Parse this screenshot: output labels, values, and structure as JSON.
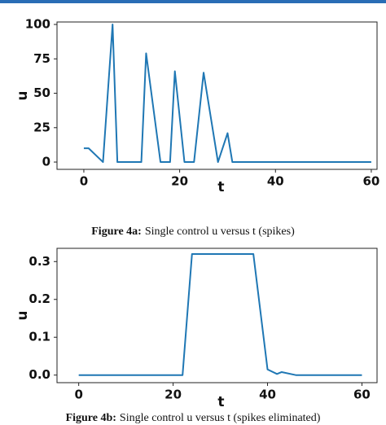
{
  "chart_data": [
    {
      "type": "line",
      "caption_label": "Figure 4a:",
      "caption": "Single control u versus t (spikes)",
      "xlabel": "t",
      "ylabel": "u",
      "x": [
        0,
        1,
        4,
        6,
        7,
        12,
        13,
        16,
        18,
        19,
        21,
        23,
        25,
        28,
        30,
        31,
        60
      ],
      "series": [
        {
          "color": "#1f77b4",
          "values": [
            10,
            10,
            0,
            100,
            0,
            0,
            79,
            0,
            0,
            66,
            0,
            0,
            65,
            0,
            21,
            0,
            0
          ]
        }
      ],
      "xlim": [
        -5.6,
        61.2
      ],
      "ylim": [
        -5.3,
        101.8
      ],
      "xticks": [
        0,
        20,
        40,
        60
      ],
      "yticks": [
        0,
        25,
        50,
        75,
        100
      ]
    },
    {
      "type": "line",
      "caption_label": "Figure 4b:",
      "caption": "Single control u versus t (spikes eliminated)",
      "xlabel": "t",
      "ylabel": "u",
      "x": [
        0,
        22,
        24,
        37,
        40,
        42,
        43,
        46,
        60
      ],
      "series": [
        {
          "color": "#1f77b4",
          "values": [
            0,
            0,
            0.32,
            0.32,
            0.015,
            0.003,
            0.008,
            0,
            0
          ]
        }
      ],
      "xlim": [
        -4.6,
        63.2
      ],
      "ylim": [
        -0.02,
        0.335
      ],
      "xticks": [
        0,
        20,
        40,
        60
      ],
      "yticks": [
        {
          "value": 0,
          "label": "0.0"
        },
        0.1,
        0.2,
        0.3
      ]
    }
  ]
}
